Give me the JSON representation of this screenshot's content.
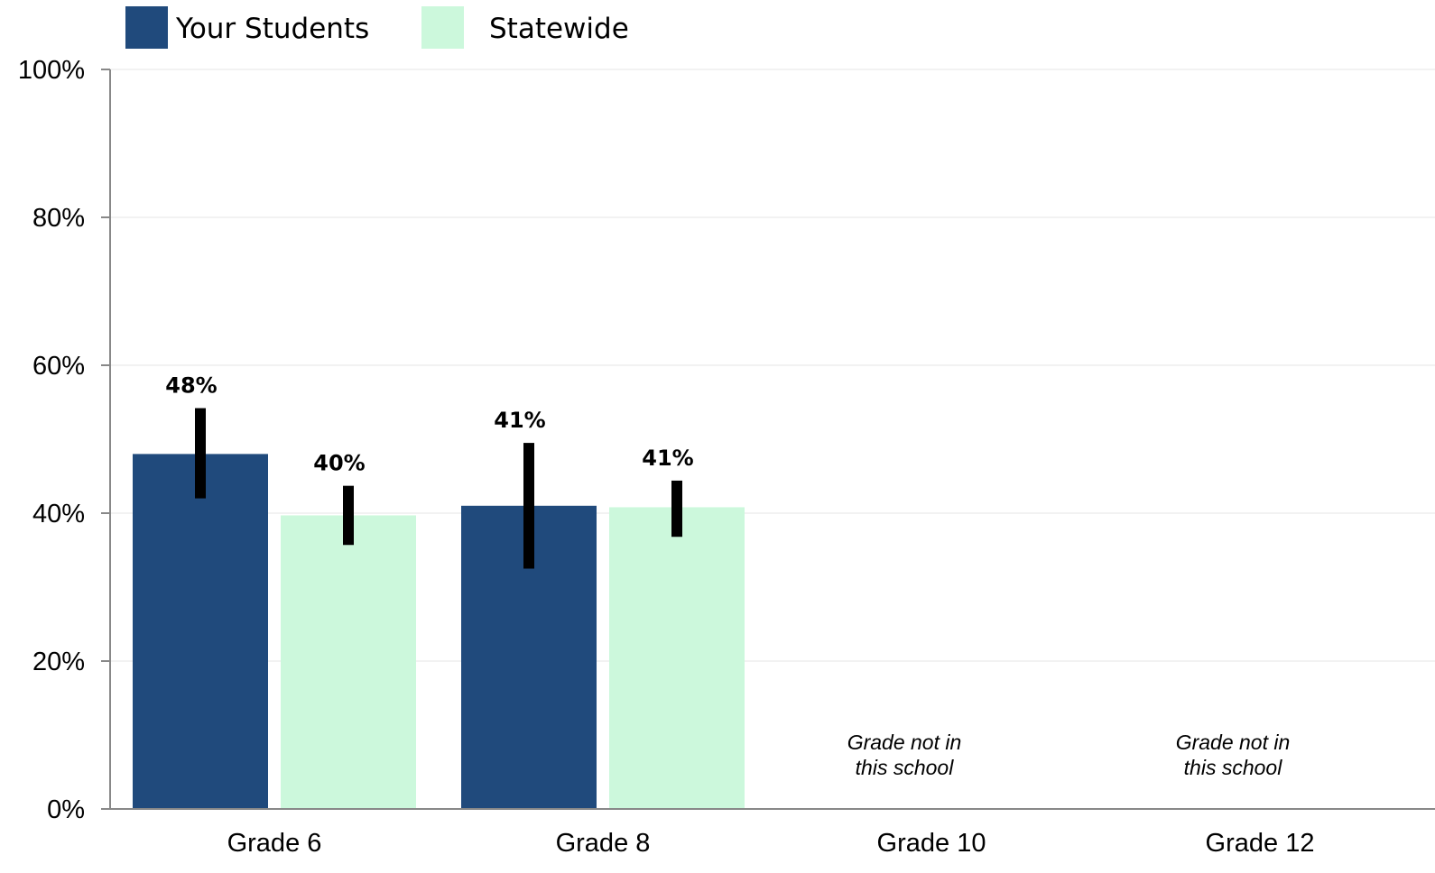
{
  "chart_data": {
    "type": "bar",
    "categories": [
      "Grade 6",
      "Grade 8",
      "Grade 10",
      "Grade 12"
    ],
    "series": [
      {
        "name": "Your Students",
        "color": "#204a7c",
        "values": [
          48,
          41,
          null,
          null
        ],
        "labels": [
          "48%",
          "41%",
          "",
          ""
        ],
        "error_low": [
          42,
          32.5,
          null,
          null
        ],
        "error_high": [
          54.2,
          49.5,
          null,
          null
        ]
      },
      {
        "name": "Statewide",
        "color": "#ccf8dc",
        "values": [
          39.7,
          40.8,
          null,
          null
        ],
        "labels": [
          "40%",
          "41%",
          "",
          ""
        ],
        "error_low": [
          35.7,
          36.8,
          null,
          null
        ],
        "error_high": [
          43.7,
          44.4,
          null,
          null
        ]
      }
    ],
    "notes": [
      null,
      null,
      [
        "Grade not in",
        "this school"
      ],
      [
        "Grade not in",
        "this school"
      ]
    ],
    "y_ticks": [
      {
        "value": 0,
        "label": "0%"
      },
      {
        "value": 20,
        "label": "20%"
      },
      {
        "value": 40,
        "label": "40%"
      },
      {
        "value": 60,
        "label": "60%"
      },
      {
        "value": 80,
        "label": "80%"
      },
      {
        "value": 100,
        "label": "100%"
      }
    ],
    "ylim": [
      0,
      100
    ],
    "grid": true,
    "legend": "top-left",
    "error_bar_color": "#000000",
    "grid_color": "#eeeeee",
    "axis_color": "#888888"
  }
}
